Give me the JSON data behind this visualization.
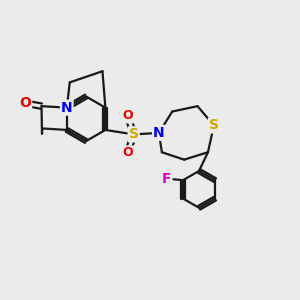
{
  "bg_color": "#ebebeb",
  "bond_color": "#1a1a1a",
  "bond_width": 1.6,
  "atom_colors": {
    "N": "#0000ee",
    "O": "#ee0000",
    "S": "#ccaa00",
    "F": "#dd00dd",
    "C": "#1a1a1a"
  },
  "font_size_atom": 9,
  "fig_width": 3.0,
  "fig_height": 3.0
}
